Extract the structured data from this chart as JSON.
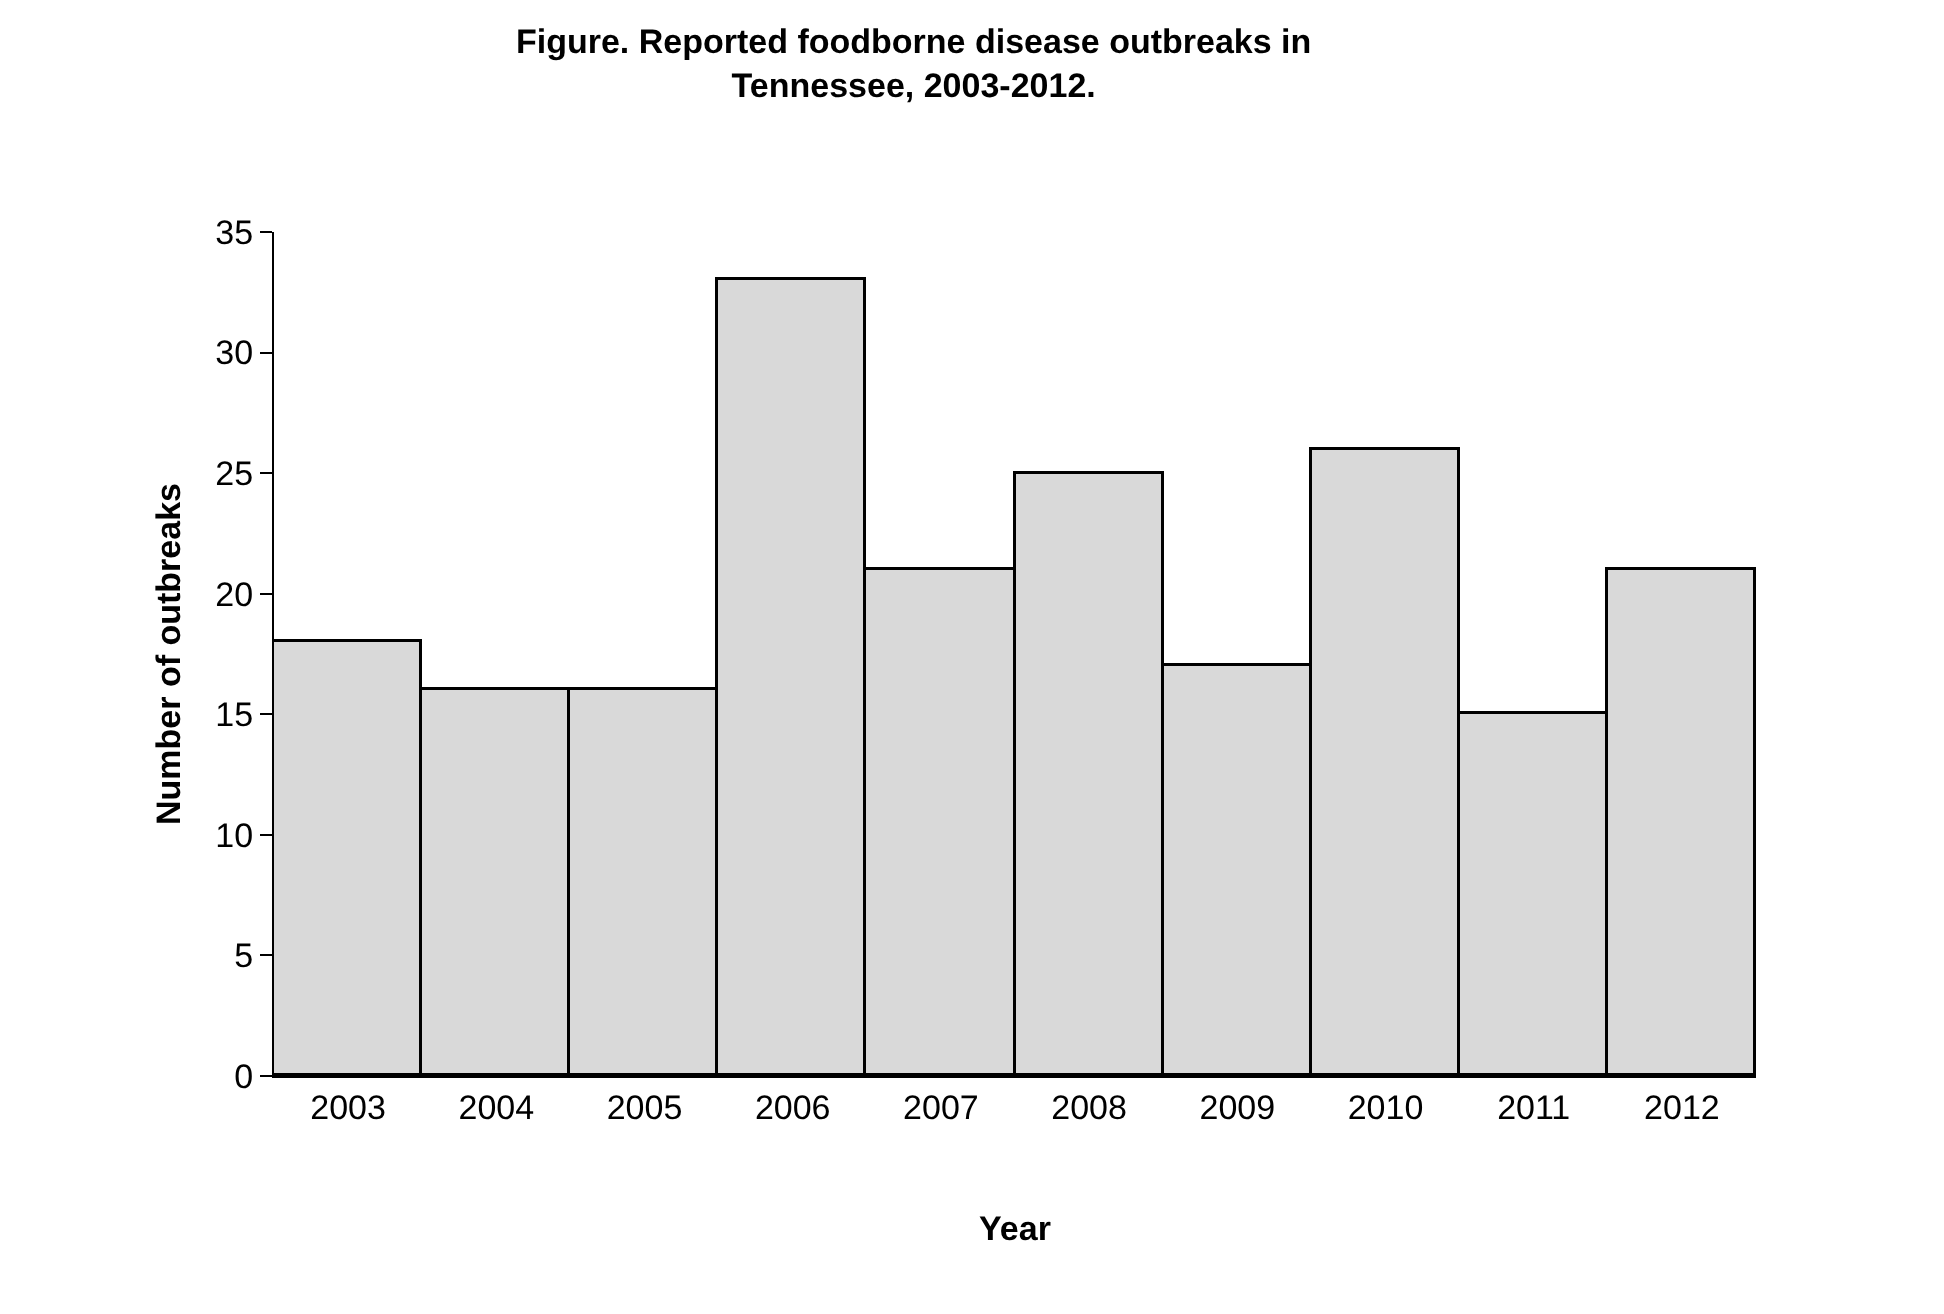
{
  "chart_data": {
    "type": "bar",
    "title": "Figure. Reported foodborne disease outbreaks in\nTennessee, 2003-2012.",
    "xlabel": "Year",
    "ylabel": "Number of outbreaks",
    "categories": [
      "2003",
      "2004",
      "2005",
      "2006",
      "2007",
      "2008",
      "2009",
      "2010",
      "2011",
      "2012"
    ],
    "values": [
      18,
      16,
      16,
      33,
      21,
      25,
      17,
      26,
      15,
      21
    ],
    "color": "#d9d9d9",
    "ylim": [
      0,
      35
    ],
    "yticks": [
      0,
      5,
      10,
      15,
      20,
      25,
      30,
      35
    ],
    "grid": false,
    "legend": false
  }
}
